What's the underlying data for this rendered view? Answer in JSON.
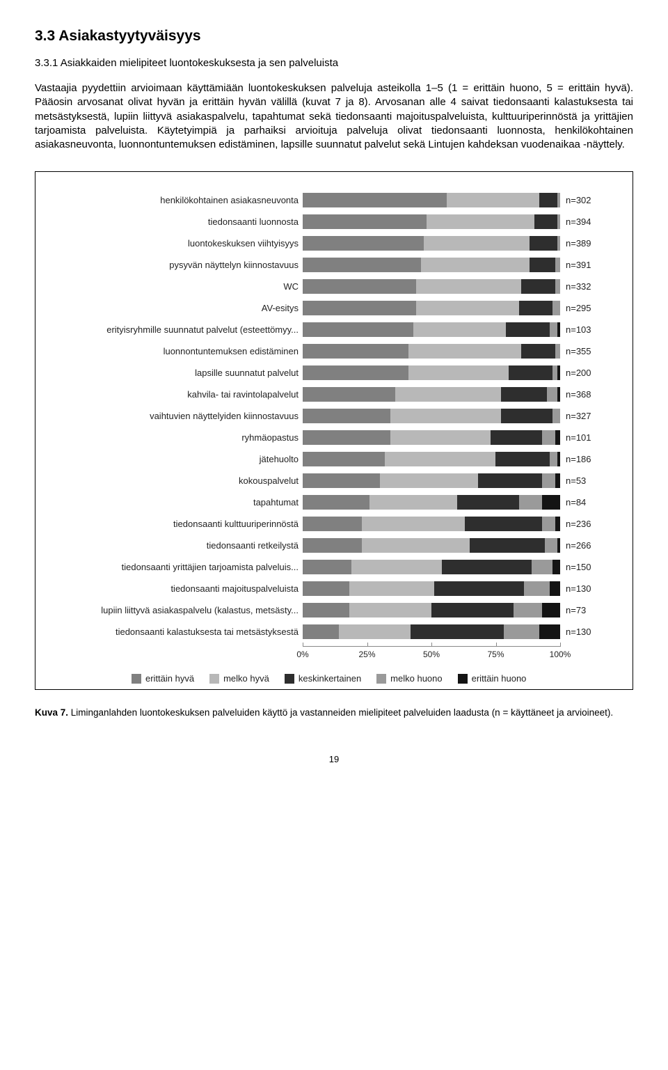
{
  "heading": "3.3 Asiakastyytyväisyys",
  "subheading": "3.3.1 Asiakkaiden mielipiteet luontokeskuksesta ja sen palveluista",
  "paragraph": "Vastaajia pyydettiin arvioimaan käyttämiään luontokeskuksen palveluja asteikolla 1–5 (1 = erittäin huono, 5 = erittäin hyvä). Pääosin arvosanat olivat hyvän ja erittäin hyvän välillä (kuvat 7 ja 8). Arvosanan alle 4 saivat tiedonsaanti kalastuksesta tai metsästyksestä, lupiin liittyvä asiakaspalvelu, tapahtumat sekä tiedonsaanti majoituspalveluista, kulttuuriperinnöstä ja yrittäjien tarjoamista palveluista. Käytetyimpiä ja parhaiksi arvioituja palveluja olivat tiedonsaanti luonnosta, henkilökohtainen asiakasneuvonta, luonnontuntemuksen edistäminen, lapsille suunnatut palvelut sekä Lintujen kahdeksan vuodenaikaa -näyttely.",
  "chart": {
    "colors": {
      "erittain_hyva": "#808080",
      "melko_hyva": "#b8b8b8",
      "keskinkert": "#2e2e2e",
      "melko_huono": "#9a9a9a",
      "erittain_huono": "#141414"
    },
    "rows": [
      {
        "label": "henkilökohtainen asiakasneuvonta",
        "n": 302,
        "values": [
          56,
          36,
          7,
          1,
          0
        ]
      },
      {
        "label": "tiedonsaanti luonnosta",
        "n": 394,
        "values": [
          48,
          42,
          9,
          1,
          0
        ]
      },
      {
        "label": "luontokeskuksen viihtyisyys",
        "n": 389,
        "values": [
          47,
          41,
          11,
          1,
          0
        ]
      },
      {
        "label": "pysyvän näyttelyn kiinnostavuus",
        "n": 391,
        "values": [
          46,
          42,
          10,
          2,
          0
        ]
      },
      {
        "label": "WC",
        "n": 332,
        "values": [
          44,
          41,
          13,
          2,
          0
        ]
      },
      {
        "label": "AV-esitys",
        "n": 295,
        "values": [
          44,
          40,
          13,
          3,
          0
        ]
      },
      {
        "label": "erityisryhmille suunnatut palvelut (esteettömyy...",
        "n": 103,
        "values": [
          43,
          36,
          17,
          3,
          1
        ]
      },
      {
        "label": "luonnontuntemuksen edistäminen",
        "n": 355,
        "values": [
          41,
          44,
          13,
          2,
          0
        ]
      },
      {
        "label": "lapsille suunnatut palvelut",
        "n": 200,
        "values": [
          41,
          39,
          17,
          2,
          1
        ]
      },
      {
        "label": "kahvila- tai ravintolapalvelut",
        "n": 368,
        "values": [
          36,
          41,
          18,
          4,
          1
        ]
      },
      {
        "label": "vaihtuvien näyttelyiden kiinnostavuus",
        "n": 327,
        "values": [
          34,
          43,
          20,
          3,
          0
        ]
      },
      {
        "label": "ryhmäopastus",
        "n": 101,
        "values": [
          34,
          39,
          20,
          5,
          2
        ]
      },
      {
        "label": "jätehuolto",
        "n": 186,
        "values": [
          32,
          43,
          21,
          3,
          1
        ]
      },
      {
        "label": "kokouspalvelut",
        "n": 53,
        "values": [
          30,
          38,
          25,
          5,
          2
        ]
      },
      {
        "label": "tapahtumat",
        "n": 84,
        "values": [
          26,
          34,
          24,
          9,
          7
        ]
      },
      {
        "label": "tiedonsaanti kulttuuriperinnöstä",
        "n": 236,
        "values": [
          23,
          40,
          30,
          5,
          2
        ]
      },
      {
        "label": "tiedonsaanti retkeilystä",
        "n": 266,
        "values": [
          23,
          42,
          29,
          5,
          1
        ]
      },
      {
        "label": "tiedonsaanti yrittäjien tarjoamista palveluis...",
        "n": 150,
        "values": [
          19,
          35,
          35,
          8,
          3
        ]
      },
      {
        "label": "tiedonsaanti majoituspalveluista",
        "n": 130,
        "values": [
          18,
          33,
          35,
          10,
          4
        ]
      },
      {
        "label": "lupiin liittyvä asiakaspalvelu (kalastus, metsästy...",
        "n": 73,
        "values": [
          18,
          32,
          32,
          11,
          7
        ]
      },
      {
        "label": "tiedonsaanti kalastuksesta tai metsästyksestä",
        "n": 130,
        "values": [
          14,
          28,
          36,
          14,
          8
        ]
      }
    ],
    "ticks": [
      {
        "pos": 0,
        "label": "0%"
      },
      {
        "pos": 25,
        "label": "25%"
      },
      {
        "pos": 50,
        "label": "50%"
      },
      {
        "pos": 75,
        "label": "75%"
      },
      {
        "pos": 100,
        "label": "100%"
      }
    ],
    "legend": [
      {
        "key": "erittain_hyva",
        "label": "erittäin hyvä"
      },
      {
        "key": "melko_hyva",
        "label": "melko hyvä"
      },
      {
        "key": "keskinkert",
        "label": "keskinkertainen"
      },
      {
        "key": "melko_huono",
        "label": "melko huono"
      },
      {
        "key": "erittain_huono",
        "label": "erittäin huono"
      }
    ]
  },
  "caption_strong": "Kuva 7.",
  "caption_rest": " Liminganlahden luontokeskuksen palveluiden käyttö ja vastanneiden mielipiteet palveluiden laadusta (n = käyttäneet ja arvioineet).",
  "page_number": "19"
}
